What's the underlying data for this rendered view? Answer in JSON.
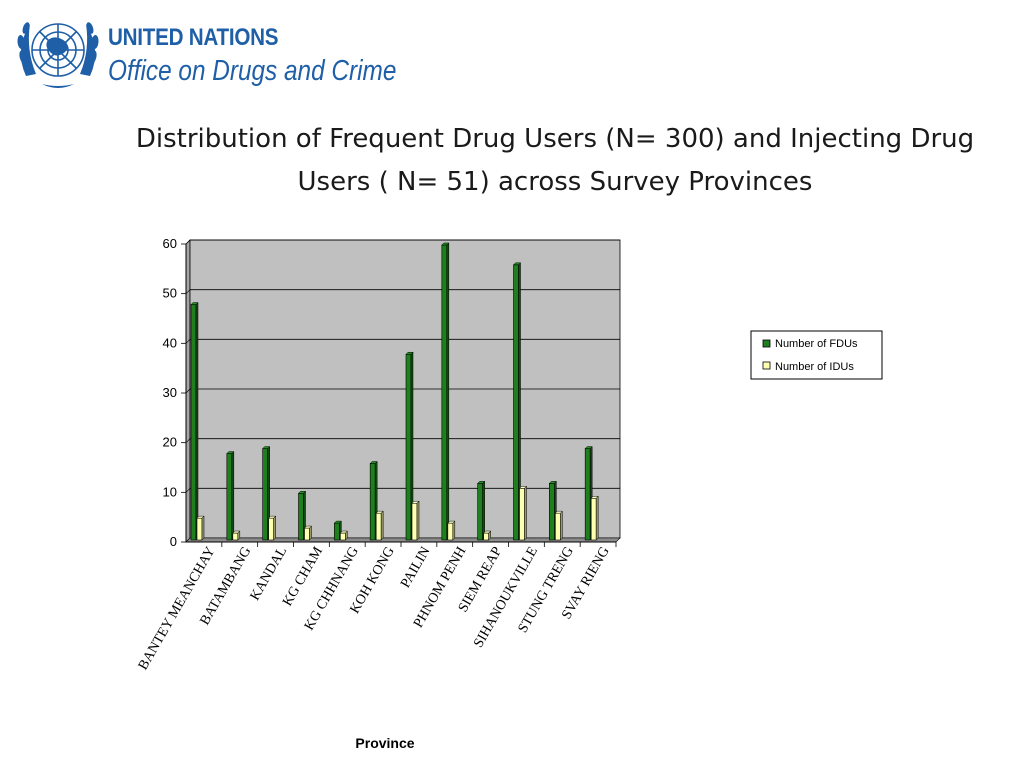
{
  "organization": {
    "line1": "UNITED NATIONS",
    "line2": "Office on Drugs and Crime",
    "logo_icon": "un-emblem-icon"
  },
  "colors": {
    "brand": "#1f5fa8",
    "fdu": "#1f7f1f",
    "idu": "#ffffb0",
    "plot_bg": "#c0c0c0"
  },
  "chart_data": {
    "type": "bar",
    "title": "Distribution of Frequent Drug Users (N= 300) and Injecting Drug Users ( N= 51) across Survey Provinces",
    "xlabel": "Province",
    "ylabel": "",
    "ylim": [
      0,
      60
    ],
    "yticks": [
      0,
      10,
      20,
      30,
      40,
      50,
      60
    ],
    "grid": true,
    "legend_position": "right",
    "categories": [
      "BANTEY MEANCHAY",
      "BATAMBANG",
      "KANDAL",
      "KG CHAM",
      "KG CHHNANG",
      "KOH KONG",
      "PAILIN",
      "PHNOM PENH",
      "SIEM REAP",
      "SIHANOUKVILLE",
      "STUNG TRENG",
      "SVAY RIENG"
    ],
    "series": [
      {
        "name": "Number of FDUs",
        "color": "#1f7f1f",
        "values": [
          47,
          17,
          18,
          9,
          3,
          15,
          37,
          59,
          11,
          55,
          11,
          18
        ]
      },
      {
        "name": "Number of IDUs",
        "color": "#ffffb0",
        "values": [
          4,
          1,
          4,
          2,
          1,
          5,
          7,
          3,
          1,
          10,
          5,
          8
        ]
      }
    ]
  }
}
